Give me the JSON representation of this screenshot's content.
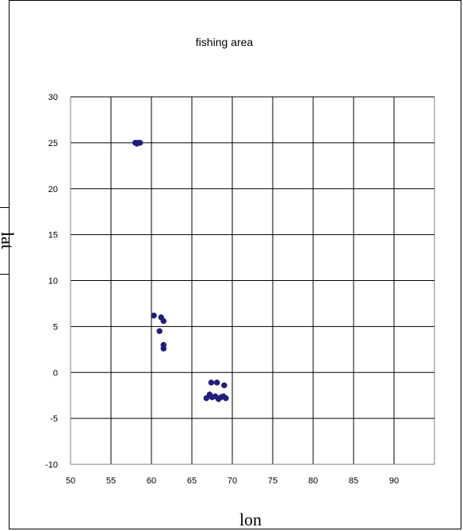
{
  "chart_data": {
    "type": "scatter",
    "title": "fishing area",
    "xlabel": "lon",
    "ylabel": "lat",
    "xlim": [
      50,
      95
    ],
    "ylim": [
      -10,
      30
    ],
    "x_ticks": [
      50,
      55,
      60,
      65,
      70,
      75,
      80,
      85,
      90
    ],
    "y_ticks": [
      -10,
      -5,
      0,
      5,
      10,
      15,
      20,
      25,
      30
    ],
    "grid": true,
    "legend": "none",
    "series": [
      {
        "color": "#1f1f7a",
        "points": [
          {
            "x": 58.0,
            "y": 25.0
          },
          {
            "x": 58.3,
            "y": 25.0
          },
          {
            "x": 58.6,
            "y": 25.0
          },
          {
            "x": 58.2,
            "y": 24.9
          },
          {
            "x": 60.3,
            "y": 6.2
          },
          {
            "x": 61.2,
            "y": 6.0
          },
          {
            "x": 61.5,
            "y": 5.6
          },
          {
            "x": 61.0,
            "y": 4.5
          },
          {
            "x": 61.5,
            "y": 3.0
          },
          {
            "x": 61.5,
            "y": 2.6
          },
          {
            "x": 67.4,
            "y": -1.1
          },
          {
            "x": 68.1,
            "y": -1.1
          },
          {
            "x": 69.0,
            "y": -1.4
          },
          {
            "x": 66.8,
            "y": -2.8
          },
          {
            "x": 67.2,
            "y": -2.4
          },
          {
            "x": 67.5,
            "y": -2.7
          },
          {
            "x": 67.9,
            "y": -2.6
          },
          {
            "x": 68.3,
            "y": -2.9
          },
          {
            "x": 68.6,
            "y": -2.7
          },
          {
            "x": 68.9,
            "y": -2.6
          },
          {
            "x": 69.2,
            "y": -2.8
          }
        ]
      }
    ]
  }
}
